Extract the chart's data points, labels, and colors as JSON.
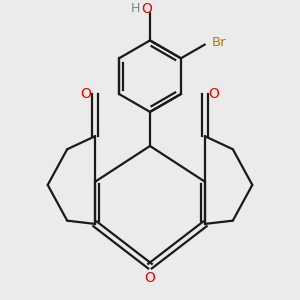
{
  "bg_color": "#ebebeb",
  "bond_color": "#1a1a1a",
  "o_color": "#ee0000",
  "br_color": "#bb7700",
  "h_color": "#778877",
  "lw": 1.6,
  "figsize": [
    3.0,
    3.0
  ],
  "dpi": 100,
  "xlim": [
    -4.5,
    4.5
  ],
  "ylim": [
    -4.2,
    4.8
  ]
}
